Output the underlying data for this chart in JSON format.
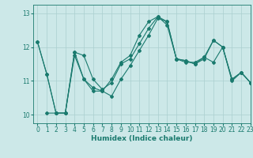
{
  "xlabel": "Humidex (Indice chaleur)",
  "xlim": [
    -0.5,
    23
  ],
  "ylim": [
    9.75,
    13.25
  ],
  "yticks": [
    10,
    11,
    12,
    13
  ],
  "xticks": [
    0,
    1,
    2,
    3,
    4,
    5,
    6,
    7,
    8,
    9,
    10,
    11,
    12,
    13,
    14,
    15,
    16,
    17,
    18,
    19,
    20,
    21,
    22,
    23
  ],
  "background_color": "#cce8e8",
  "grid_color": "#aacfcf",
  "line_color": "#1a7a6e",
  "line1_x": [
    0,
    1,
    2,
    3,
    4,
    5,
    6,
    7,
    8,
    9,
    10,
    11,
    12,
    13,
    14,
    15,
    16,
    17,
    18,
    19,
    20,
    21,
    22,
    23
  ],
  "line1_y": [
    12.15,
    11.2,
    10.05,
    10.05,
    11.85,
    11.75,
    11.05,
    10.75,
    10.95,
    11.5,
    11.65,
    12.1,
    12.55,
    12.9,
    12.75,
    11.65,
    11.6,
    11.5,
    11.7,
    12.2,
    12.0,
    11.05,
    11.25,
    10.95
  ],
  "line2_x": [
    0,
    1,
    2,
    3,
    4,
    5,
    6,
    7,
    8,
    9,
    10,
    11,
    12,
    13,
    14,
    15,
    16,
    17,
    18,
    19,
    20,
    21,
    22,
    23
  ],
  "line2_y": [
    12.15,
    11.2,
    10.05,
    10.05,
    11.75,
    11.05,
    10.7,
    10.7,
    11.05,
    11.55,
    11.75,
    12.35,
    12.75,
    12.9,
    12.65,
    11.65,
    11.55,
    11.55,
    11.7,
    11.55,
    12.0,
    11.0,
    11.25,
    10.95
  ],
  "line3_x": [
    1,
    2,
    3,
    4,
    5,
    6,
    7,
    8,
    9,
    10,
    11,
    12,
    13,
    14,
    15,
    16,
    17,
    18,
    19,
    20,
    21,
    22,
    23
  ],
  "line3_y": [
    10.05,
    10.05,
    10.05,
    11.85,
    11.05,
    10.8,
    10.7,
    10.55,
    11.05,
    11.45,
    11.9,
    12.35,
    12.85,
    12.75,
    11.65,
    11.6,
    11.5,
    11.65,
    12.2,
    12.0,
    11.05,
    11.25,
    10.95
  ]
}
